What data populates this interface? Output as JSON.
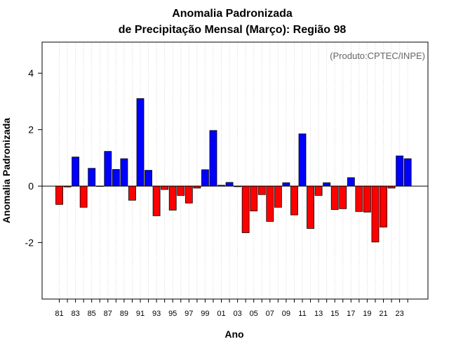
{
  "chart_data": {
    "type": "bar",
    "title_line1": "Anomalia Padronizada",
    "title_line2": "de Precipitação Mensal (Março): Região 98",
    "xlabel": "Ano",
    "ylabel": "Anomalia Padronizada",
    "credit": "(Produto:CPTEC/INPE)",
    "ylim": [
      -4,
      5.1
    ],
    "yticks": [
      -2,
      0,
      2,
      4
    ],
    "ytick_labels": [
      "-2",
      "0",
      "2",
      "4"
    ],
    "grid": "vertical dotted",
    "categories": [
      "1981",
      "1982",
      "1983",
      "1984",
      "1985",
      "1986",
      "1987",
      "1988",
      "1989",
      "1990",
      "1991",
      "1992",
      "1993",
      "1994",
      "1995",
      "1996",
      "1997",
      "1998",
      "1999",
      "2000",
      "2001",
      "2002",
      "2003",
      "2004",
      "2005",
      "2006",
      "2007",
      "2008",
      "2009",
      "2010",
      "2011",
      "2012",
      "2013",
      "2014",
      "2015",
      "2016",
      "2017",
      "2018",
      "2019",
      "2020",
      "2021",
      "2022",
      "2023",
      "2024"
    ],
    "xtick_labels": [
      "81",
      "83",
      "85",
      "87",
      "89",
      "91",
      "93",
      "95",
      "97",
      "99",
      "01",
      "03",
      "05",
      "07",
      "09",
      "11",
      "13",
      "15",
      "17",
      "19",
      "21",
      "23"
    ],
    "values": [
      -0.65,
      -0.03,
      1.03,
      -0.75,
      0.63,
      0.0,
      1.23,
      0.59,
      0.97,
      -0.5,
      3.1,
      0.56,
      -1.05,
      -0.12,
      -0.85,
      -0.33,
      -0.6,
      -0.07,
      0.58,
      1.97,
      0.03,
      0.13,
      -0.02,
      -1.65,
      -0.88,
      -0.3,
      -1.25,
      -0.75,
      0.12,
      -1.02,
      1.85,
      -1.5,
      -0.33,
      0.12,
      -0.83,
      -0.8,
      0.3,
      -0.9,
      -0.92,
      -1.98,
      -1.45,
      -0.07,
      1.07,
      0.97
    ],
    "positive_color": "#0000ff",
    "negative_color": "#ff0000"
  }
}
